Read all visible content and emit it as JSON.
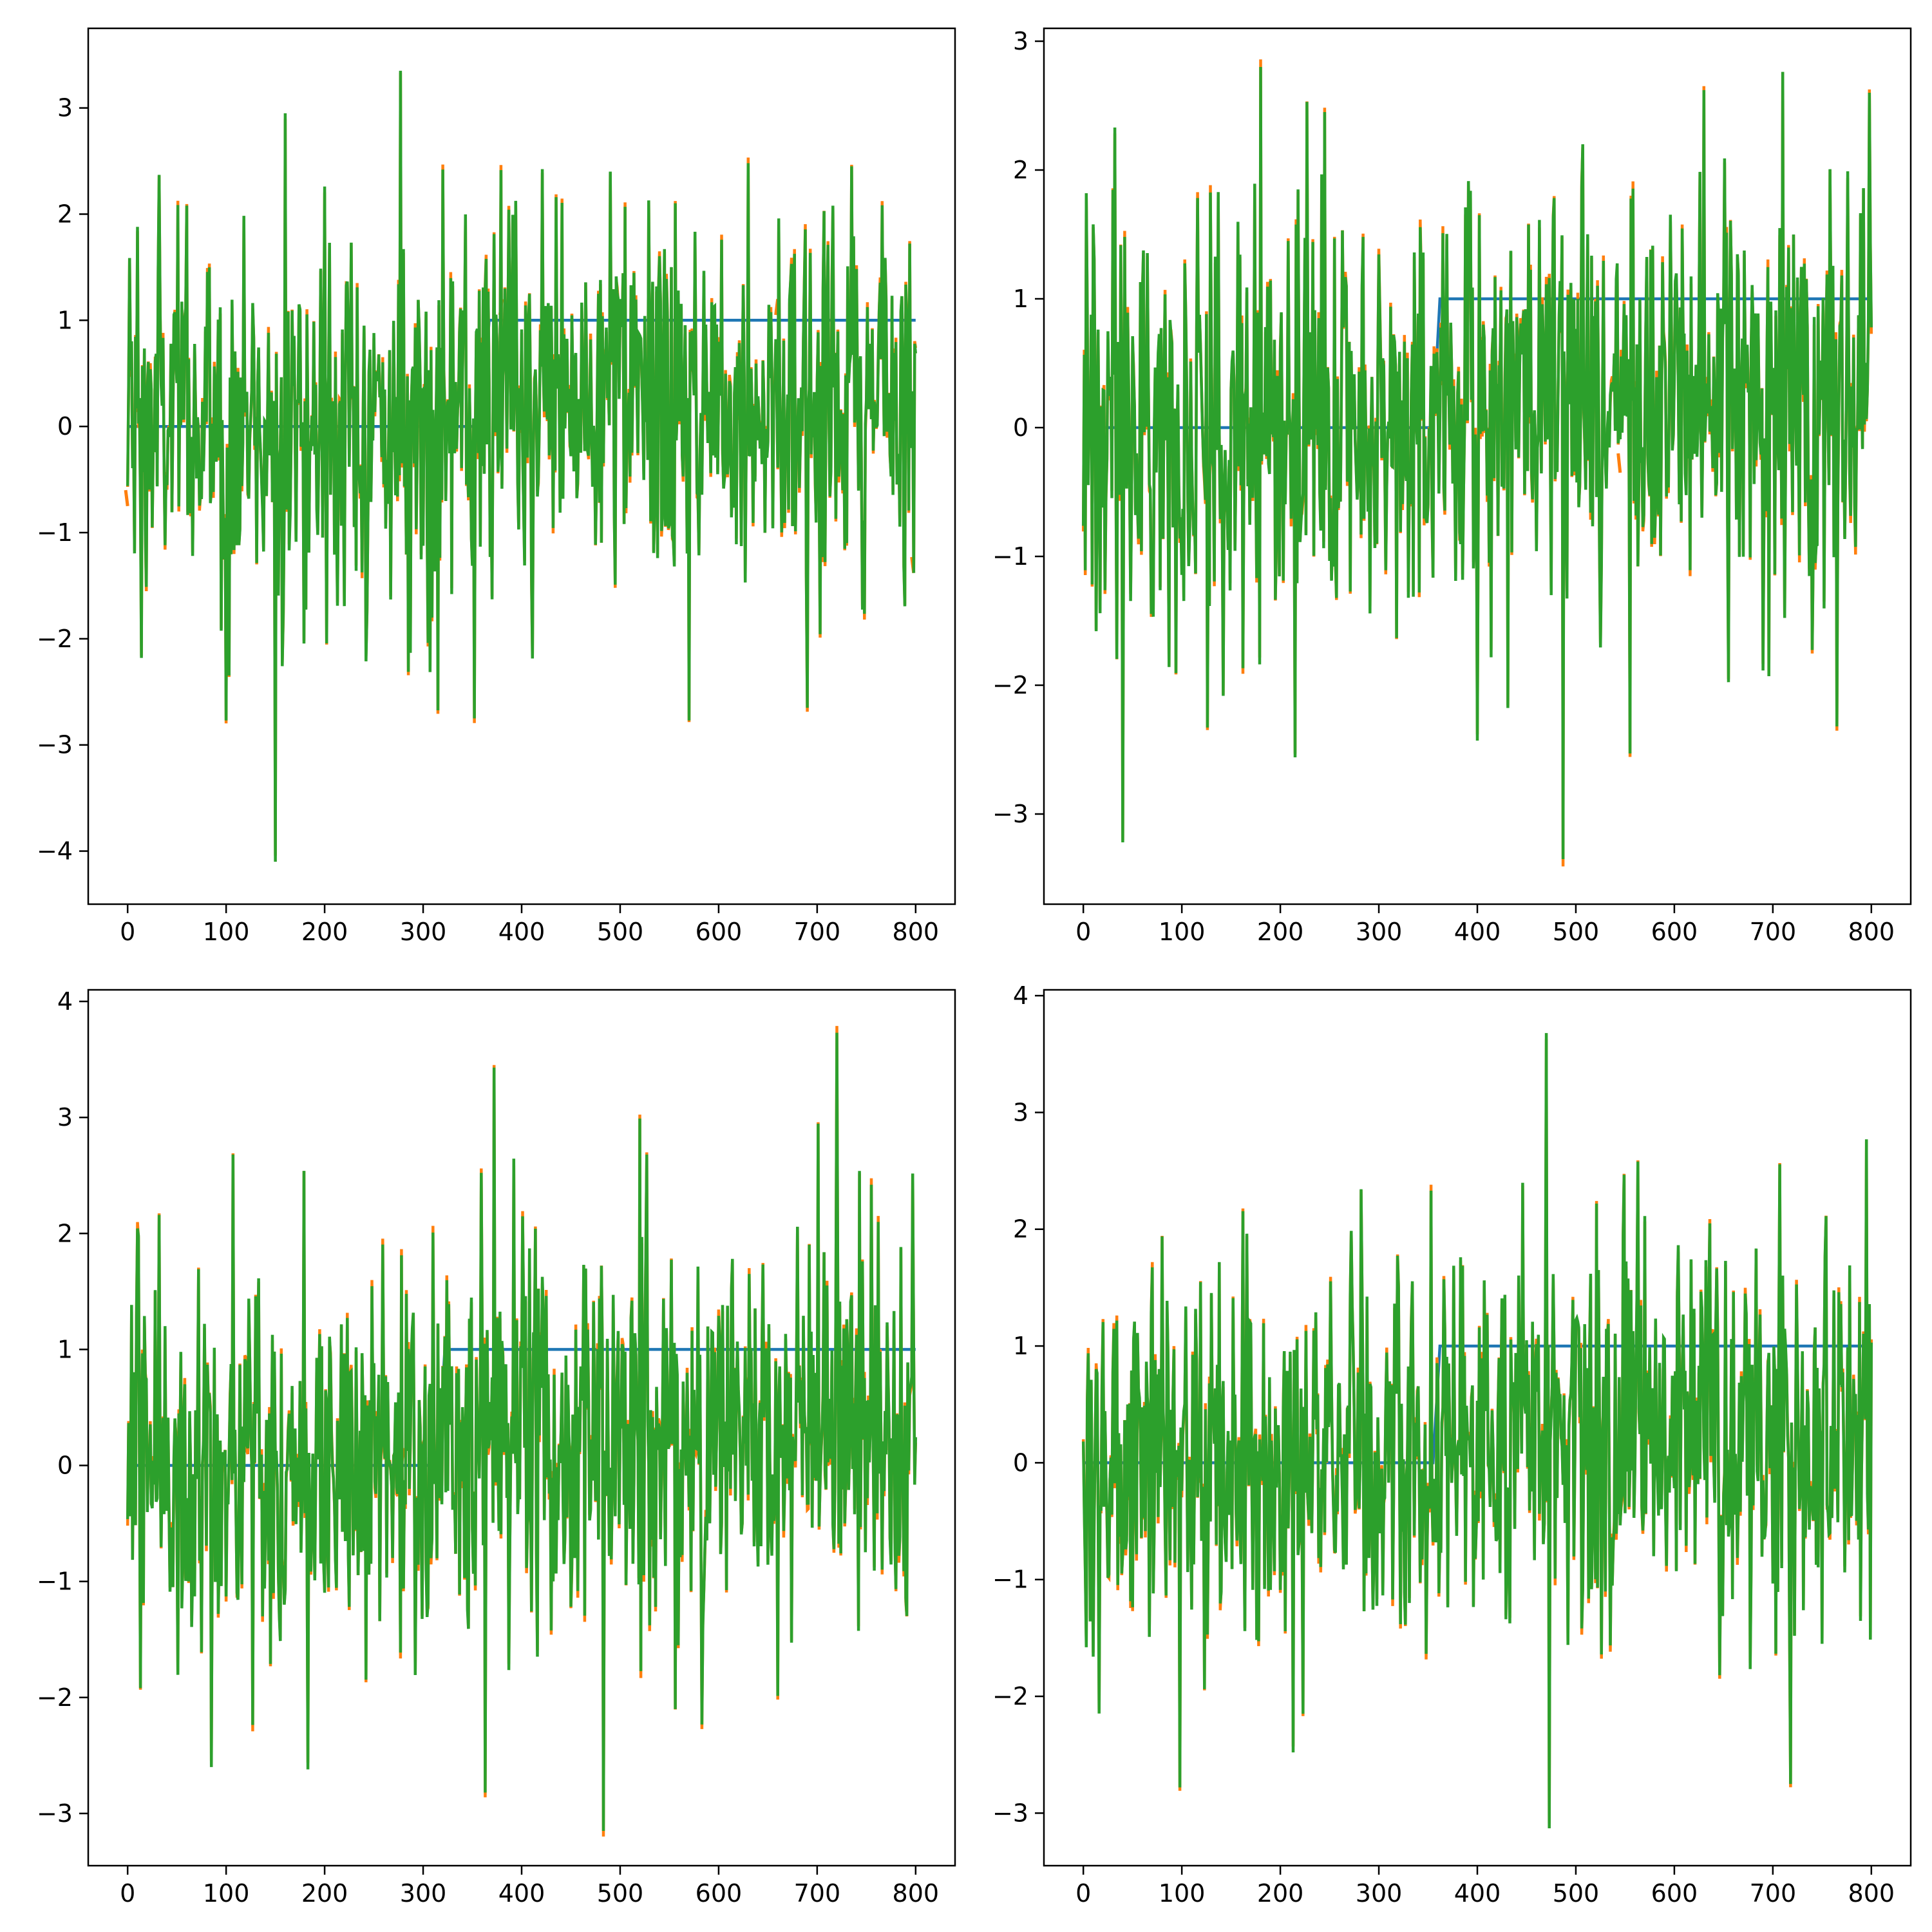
{
  "colors": {
    "step": "#1f77b4",
    "estimate": "#ff7f0e",
    "noisy": "#2ca02c",
    "axes": "#000000",
    "background": "#ffffff"
  },
  "chart_data": [
    {
      "type": "line",
      "x_range": [
        0,
        800
      ],
      "xlim": [
        -40,
        840
      ],
      "ylim": [
        -4.5,
        3.75
      ],
      "xticks": [
        0,
        100,
        200,
        300,
        400,
        500,
        600,
        700,
        800
      ],
      "yticks": [
        -4,
        -3,
        -2,
        -1,
        0,
        1,
        2,
        3
      ],
      "xtick_labels": [
        "0",
        "100",
        "200",
        "300",
        "400",
        "500",
        "600",
        "700",
        "800"
      ],
      "ytick_labels": [
        "−4",
        "−3",
        "−2",
        "−1",
        "0",
        "1",
        "2",
        "3"
      ],
      "grid": false,
      "step_change_x": 365,
      "step_levels": [
        0,
        1
      ],
      "noise_peaks": [
        {
          "x": 10,
          "y": 1.88
        },
        {
          "x": 14,
          "y": -2.18
        },
        {
          "x": 32,
          "y": 2.37
        },
        {
          "x": 60,
          "y": 2.08
        },
        {
          "x": 100,
          "y": -2.77
        },
        {
          "x": 150,
          "y": -4.1
        },
        {
          "x": 160,
          "y": 2.95
        },
        {
          "x": 200,
          "y": 2.26
        },
        {
          "x": 277,
          "y": 3.35
        },
        {
          "x": 320,
          "y": 2.42
        },
        {
          "x": 352,
          "y": -2.75
        },
        {
          "x": 490,
          "y": 2.4
        },
        {
          "x": 570,
          "y": -2.77
        },
        {
          "x": 630,
          "y": 2.48
        },
        {
          "x": 690,
          "y": -2.65
        },
        {
          "x": 735,
          "y": 2.45
        },
        {
          "x": 798,
          "y": -1.38
        }
      ],
      "noise_amplitude": 0.85,
      "estimate_visible": [
        {
          "x": 0,
          "y": -0.75
        },
        {
          "x": 380,
          "y": 1.2
        },
        {
          "x": 660,
          "y": 1.2
        },
        {
          "x": 798,
          "y": -1.38
        }
      ]
    },
    {
      "type": "line",
      "x_range": [
        0,
        800
      ],
      "xlim": [
        -40,
        840
      ],
      "ylim": [
        -3.7,
        3.1
      ],
      "xticks": [
        0,
        100,
        200,
        300,
        400,
        500,
        600,
        700,
        800
      ],
      "yticks": [
        -3,
        -2,
        -1,
        0,
        1,
        2,
        3
      ],
      "xtick_labels": [
        "0",
        "100",
        "200",
        "300",
        "400",
        "500",
        "600",
        "700",
        "800"
      ],
      "ytick_labels": [
        "−3",
        "−2",
        "−1",
        "0",
        "1",
        "2",
        "3"
      ],
      "grid": false,
      "step_change_x": 360,
      "step_levels": [
        0,
        1
      ],
      "noise_peaks": [
        {
          "x": 3,
          "y": 1.82
        },
        {
          "x": 40,
          "y": -3.22
        },
        {
          "x": 32,
          "y": 2.33
        },
        {
          "x": 180,
          "y": 2.8
        },
        {
          "x": 215,
          "y": -2.56
        },
        {
          "x": 245,
          "y": 2.45
        },
        {
          "x": 400,
          "y": -2.43
        },
        {
          "x": 487,
          "y": -3.35
        },
        {
          "x": 555,
          "y": -2.53
        },
        {
          "x": 630,
          "y": 2.62
        },
        {
          "x": 765,
          "y": -2.32
        },
        {
          "x": 798,
          "y": 2.6
        }
      ],
      "noise_amplitude": 0.8,
      "estimate_visible": [
        {
          "x": 3,
          "y": 0.12
        },
        {
          "x": 450,
          "y": 0.3
        },
        {
          "x": 545,
          "y": -0.35
        }
      ]
    },
    {
      "type": "line",
      "x_range": [
        0,
        800
      ],
      "xlim": [
        -40,
        840
      ],
      "ylim": [
        -3.45,
        4.1
      ],
      "xticks": [
        0,
        100,
        200,
        300,
        400,
        500,
        600,
        700,
        800
      ],
      "yticks": [
        -3,
        -2,
        -1,
        0,
        1,
        2,
        3,
        4
      ],
      "xtick_labels": [
        "0",
        "100",
        "200",
        "300",
        "400",
        "500",
        "600",
        "700",
        "800"
      ],
      "ytick_labels": [
        "−3",
        "−2",
        "−1",
        "0",
        "1",
        "2",
        "3",
        "4"
      ],
      "grid": false,
      "step_change_x": 320,
      "step_levels": [
        0,
        1
      ],
      "noise_peaks": [
        {
          "x": 13,
          "y": -1.92
        },
        {
          "x": 32,
          "y": 2.16
        },
        {
          "x": 85,
          "y": -2.6
        },
        {
          "x": 107,
          "y": 2.68
        },
        {
          "x": 183,
          "y": -2.62
        },
        {
          "x": 363,
          "y": -2.82
        },
        {
          "x": 372,
          "y": 3.43
        },
        {
          "x": 483,
          "y": -3.15
        },
        {
          "x": 527,
          "y": 2.68
        },
        {
          "x": 720,
          "y": 3.73
        },
        {
          "x": 755,
          "y": 2.42
        }
      ],
      "noise_amplitude": 0.85,
      "estimate_visible": [
        {
          "x": 280,
          "y": 0.15
        },
        {
          "x": 140,
          "y": -0.3
        }
      ]
    },
    {
      "type": "line",
      "x_range": [
        0,
        800
      ],
      "xlim": [
        -40,
        840
      ],
      "ylim": [
        -3.45,
        4.05
      ],
      "xticks": [
        0,
        100,
        200,
        300,
        400,
        500,
        600,
        700,
        800
      ],
      "yticks": [
        -3,
        -2,
        -1,
        0,
        1,
        2,
        3,
        4
      ],
      "xtick_labels": [
        "0",
        "100",
        "200",
        "300",
        "400",
        "500",
        "600",
        "700",
        "800"
      ],
      "ytick_labels": [
        "−3",
        "−2",
        "−1",
        "0",
        "1",
        "2",
        "3",
        "4"
      ],
      "grid": false,
      "step_change_x": 360,
      "step_levels": [
        0,
        1
      ],
      "noise_peaks": [
        {
          "x": 3,
          "y": -1.58
        },
        {
          "x": 98,
          "y": -2.78
        },
        {
          "x": 213,
          "y": -2.48
        },
        {
          "x": 353,
          "y": 2.33
        },
        {
          "x": 470,
          "y": 3.68
        },
        {
          "x": 473,
          "y": -3.13
        },
        {
          "x": 563,
          "y": 2.58
        },
        {
          "x": 718,
          "y": -2.75
        },
        {
          "x": 795,
          "y": 2.77
        }
      ],
      "noise_amplitude": 0.8,
      "estimate_visible": [
        {
          "x": 170,
          "y": 0.08
        }
      ]
    }
  ]
}
